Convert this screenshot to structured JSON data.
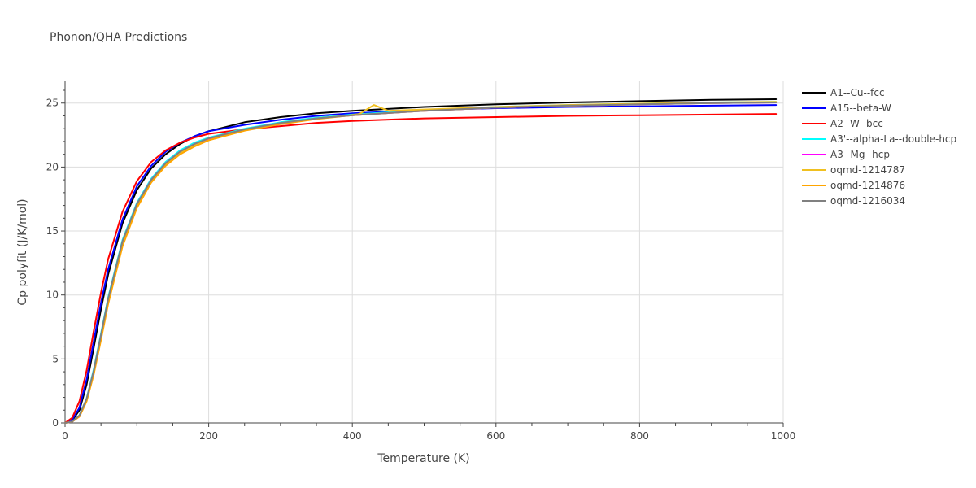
{
  "chart_data": {
    "type": "line",
    "title": "Phonon/QHA Predictions",
    "xlabel": "Temperature (K)",
    "ylabel": "Cp polyfit (J/K/mol)",
    "xlim": [
      0,
      1000
    ],
    "ylim": [
      0,
      26.7
    ],
    "xticks": [
      0,
      200,
      400,
      600,
      800,
      1000
    ],
    "yticks": [
      0,
      5,
      10,
      15,
      20,
      25
    ],
    "grid": true,
    "legend_position": "right",
    "series": [
      {
        "name": "A1--Cu--fcc",
        "color": "#000000",
        "x": [
          0,
          10,
          20,
          30,
          40,
          50,
          60,
          80,
          100,
          120,
          140,
          160,
          180,
          200,
          250,
          300,
          350,
          400,
          500,
          600,
          700,
          800,
          900,
          990
        ],
        "y": [
          0,
          0.2,
          1.0,
          3.0,
          5.9,
          8.9,
          11.6,
          15.6,
          18.2,
          19.9,
          21.0,
          21.8,
          22.4,
          22.8,
          23.5,
          23.9,
          24.2,
          24.4,
          24.7,
          24.9,
          25.05,
          25.15,
          25.25,
          25.3
        ]
      },
      {
        "name": "A15--beta-W",
        "color": "#0000ff",
        "x": [
          0,
          10,
          20,
          30,
          40,
          50,
          60,
          80,
          100,
          120,
          140,
          160,
          180,
          200,
          250,
          300,
          350,
          400,
          500,
          600,
          700,
          800,
          900,
          990
        ],
        "y": [
          0,
          0.25,
          1.2,
          3.4,
          6.4,
          9.4,
          12.0,
          15.9,
          18.5,
          20.1,
          21.2,
          21.9,
          22.4,
          22.8,
          23.3,
          23.7,
          24.0,
          24.2,
          24.45,
          24.6,
          24.7,
          24.75,
          24.8,
          24.85
        ]
      },
      {
        "name": "A2--W--bcc",
        "color": "#ff0000",
        "x": [
          0,
          10,
          20,
          30,
          40,
          50,
          60,
          80,
          100,
          120,
          140,
          160,
          180,
          200,
          250,
          300,
          350,
          400,
          500,
          600,
          700,
          800,
          900,
          990
        ],
        "y": [
          0,
          0.4,
          1.7,
          4.1,
          7.2,
          10.2,
          12.8,
          16.5,
          18.9,
          20.4,
          21.3,
          21.9,
          22.3,
          22.6,
          22.95,
          23.2,
          23.45,
          23.6,
          23.8,
          23.9,
          24.0,
          24.05,
          24.1,
          24.15
        ]
      },
      {
        "name": "A3'--alpha-La--double-hcp",
        "color": "#00ffff",
        "x": [
          0,
          10,
          20,
          30,
          40,
          50,
          60,
          80,
          100,
          120,
          140,
          160,
          180,
          200,
          250,
          300,
          350,
          400,
          500,
          600,
          700,
          800,
          900,
          990
        ],
        "y": [
          0,
          0.1,
          0.6,
          1.9,
          4.2,
          7.0,
          9.8,
          14.3,
          17.2,
          19.1,
          20.4,
          21.3,
          21.9,
          22.3,
          23.0,
          23.5,
          23.85,
          24.1,
          24.45,
          24.7,
          24.85,
          24.95,
          25.05,
          25.1
        ]
      },
      {
        "name": "A3--Mg--hcp",
        "color": "#ff00ff",
        "x": [
          0,
          10,
          20,
          30,
          40,
          50,
          60,
          80,
          100,
          120,
          140,
          160,
          180,
          200,
          250,
          300,
          350,
          400,
          500,
          600,
          700,
          800,
          900,
          990
        ],
        "y": [
          0,
          0.1,
          0.5,
          1.8,
          4.0,
          6.8,
          9.6,
          14.1,
          17.1,
          19.0,
          20.3,
          21.2,
          21.8,
          22.2,
          22.9,
          23.4,
          23.8,
          24.05,
          24.4,
          24.65,
          24.8,
          24.9,
          25.0,
          25.05
        ]
      },
      {
        "name": "oqmd-1214787",
        "color": "#f0c020",
        "x": [
          0,
          10,
          20,
          30,
          40,
          50,
          60,
          80,
          100,
          120,
          140,
          160,
          180,
          200,
          250,
          300,
          350,
          390,
          410,
          430,
          450,
          500,
          600,
          700,
          800,
          900,
          990
        ],
        "y": [
          0,
          0.1,
          0.5,
          1.7,
          3.9,
          6.6,
          9.4,
          13.9,
          16.9,
          18.9,
          20.2,
          21.1,
          21.7,
          22.1,
          22.9,
          23.4,
          23.8,
          24.0,
          24.15,
          24.85,
          24.4,
          24.5,
          24.7,
          24.85,
          24.95,
          25.05,
          25.1
        ]
      },
      {
        "name": "oqmd-1214876",
        "color": "#ffa500",
        "x": [
          0,
          10,
          20,
          30,
          40,
          50,
          60,
          80,
          100,
          120,
          140,
          160,
          180,
          200,
          250,
          300,
          350,
          400,
          500,
          600,
          700,
          800,
          900,
          990
        ],
        "y": [
          0,
          0.1,
          0.5,
          1.7,
          3.8,
          6.5,
          9.3,
          13.8,
          16.8,
          18.8,
          20.1,
          21.0,
          21.6,
          22.1,
          22.85,
          23.35,
          23.75,
          24.05,
          24.4,
          24.65,
          24.8,
          24.9,
          25.0,
          25.05
        ]
      },
      {
        "name": "oqmd-1216034",
        "color": "#808080",
        "x": [
          0,
          10,
          20,
          30,
          40,
          50,
          60,
          80,
          100,
          120,
          140,
          160,
          180,
          200,
          250,
          300,
          350,
          400,
          500,
          600,
          700,
          800,
          900,
          990
        ],
        "y": [
          0,
          0.1,
          0.6,
          1.9,
          4.1,
          6.9,
          9.7,
          14.2,
          17.1,
          19.0,
          20.3,
          21.2,
          21.8,
          22.25,
          22.95,
          23.45,
          23.8,
          24.05,
          24.4,
          24.65,
          24.8,
          24.9,
          25.0,
          25.05
        ]
      }
    ]
  }
}
